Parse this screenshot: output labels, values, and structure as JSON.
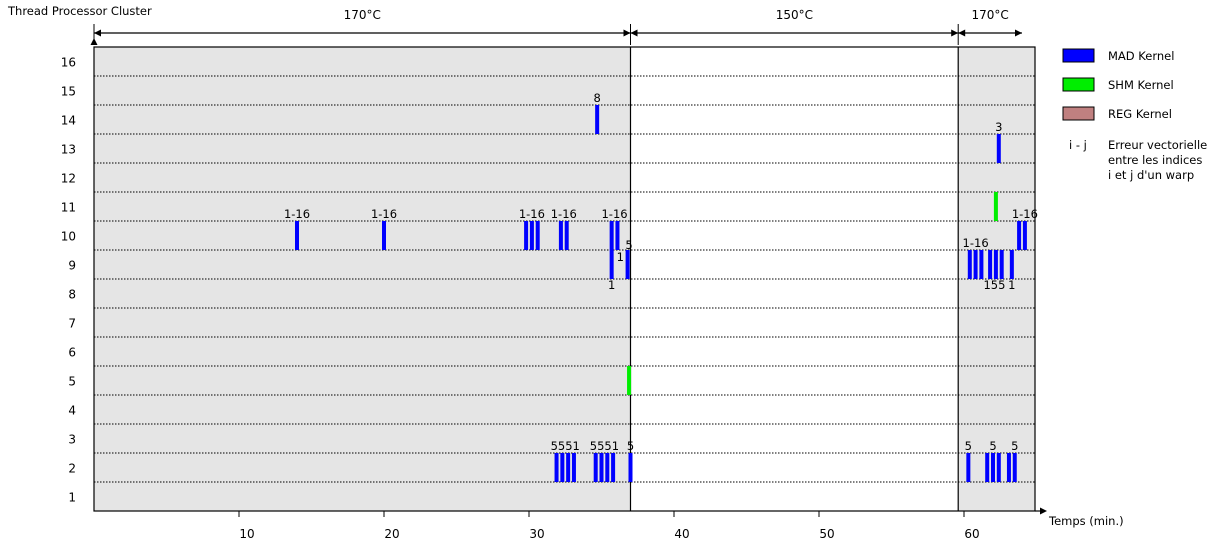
{
  "chart_data": {
    "type": "event-timeline",
    "ylabel": "Thread Processor Cluster",
    "xlabel": "Temps (min.)",
    "xlim": [
      0,
      65
    ],
    "ylim": [
      0,
      16
    ],
    "x_ticks": [
      "10",
      "20",
      "30",
      "40",
      "50",
      "60"
    ],
    "x_tick_values": [
      10,
      20,
      30,
      40,
      50,
      60
    ],
    "y_ticks": [
      "1",
      "2",
      "3",
      "4",
      "5",
      "6",
      "7",
      "8",
      "9",
      "10",
      "11",
      "12",
      "13",
      "14",
      "15",
      "16"
    ],
    "y_tick_values": [
      1,
      2,
      3,
      4,
      5,
      6,
      7,
      8,
      9,
      10,
      11,
      12,
      13,
      14,
      15,
      16
    ],
    "phases": [
      {
        "label": "170°C",
        "start": 0,
        "end": 37,
        "shaded": true
      },
      {
        "label": "150°C",
        "start": 37,
        "end": 59.6,
        "shaded": false
      },
      {
        "label": "170°C",
        "start": 59.6,
        "end": 64,
        "shaded": true
      }
    ],
    "shaded_regions": [
      [
        0,
        37
      ],
      [
        59.6,
        65
      ]
    ],
    "legend": {
      "position": "right",
      "items": [
        {
          "label": "MAD Kernel",
          "color": "#0000ff"
        },
        {
          "label": "SHM Kernel",
          "color": "#00ee00"
        },
        {
          "label": "REG Kernel",
          "color": "#c08080"
        }
      ],
      "note_key": "i - j",
      "note_lines": [
        "Erreur vectorielle",
        "entre les indices",
        "i et j d'un warp"
      ]
    },
    "events": [
      {
        "kernel": "MAD",
        "x": 14,
        "cluster": 10
      },
      {
        "kernel": "MAD",
        "x": 20,
        "cluster": 10
      },
      {
        "kernel": "MAD",
        "x": 29.8,
        "cluster": 10
      },
      {
        "kernel": "MAD",
        "x": 30.2,
        "cluster": 10
      },
      {
        "kernel": "MAD",
        "x": 30.6,
        "cluster": 10
      },
      {
        "kernel": "MAD",
        "x": 32.2,
        "cluster": 10
      },
      {
        "kernel": "MAD",
        "x": 32.6,
        "cluster": 10
      },
      {
        "kernel": "MAD",
        "x": 35.7,
        "cluster": 10
      },
      {
        "kernel": "MAD",
        "x": 36.1,
        "cluster": 10
      },
      {
        "kernel": "MAD",
        "x": 34.7,
        "cluster": 14
      },
      {
        "kernel": "MAD",
        "x": 35.7,
        "cluster": 9
      },
      {
        "kernel": "MAD",
        "x": 36.8,
        "cluster": 9
      },
      {
        "kernel": "MAD",
        "x": 31.9,
        "cluster": 2
      },
      {
        "kernel": "MAD",
        "x": 32.3,
        "cluster": 2
      },
      {
        "kernel": "MAD",
        "x": 32.7,
        "cluster": 2
      },
      {
        "kernel": "MAD",
        "x": 33.1,
        "cluster": 2
      },
      {
        "kernel": "MAD",
        "x": 34.6,
        "cluster": 2
      },
      {
        "kernel": "MAD",
        "x": 35.0,
        "cluster": 2
      },
      {
        "kernel": "MAD",
        "x": 35.4,
        "cluster": 2
      },
      {
        "kernel": "MAD",
        "x": 35.8,
        "cluster": 2
      },
      {
        "kernel": "MAD",
        "x": 37.0,
        "cluster": 2
      },
      {
        "kernel": "SHM",
        "x": 36.9,
        "cluster": 5
      },
      {
        "kernel": "MAD",
        "x": 62.4,
        "cluster": 13
      },
      {
        "kernel": "SHM",
        "x": 62.2,
        "cluster": 11
      },
      {
        "kernel": "MAD",
        "x": 63.8,
        "cluster": 10
      },
      {
        "kernel": "MAD",
        "x": 64.2,
        "cluster": 10
      },
      {
        "kernel": "MAD",
        "x": 60.4,
        "cluster": 9
      },
      {
        "kernel": "MAD",
        "x": 60.8,
        "cluster": 9
      },
      {
        "kernel": "MAD",
        "x": 61.2,
        "cluster": 9
      },
      {
        "kernel": "MAD",
        "x": 61.8,
        "cluster": 9
      },
      {
        "kernel": "MAD",
        "x": 62.2,
        "cluster": 9
      },
      {
        "kernel": "MAD",
        "x": 62.6,
        "cluster": 9
      },
      {
        "kernel": "MAD",
        "x": 63.3,
        "cluster": 9
      },
      {
        "kernel": "MAD",
        "x": 60.3,
        "cluster": 2
      },
      {
        "kernel": "MAD",
        "x": 61.6,
        "cluster": 2
      },
      {
        "kernel": "MAD",
        "x": 62.0,
        "cluster": 2
      },
      {
        "kernel": "MAD",
        "x": 62.4,
        "cluster": 2
      },
      {
        "kernel": "MAD",
        "x": 63.1,
        "cluster": 2
      },
      {
        "kernel": "MAD",
        "x": 63.5,
        "cluster": 2
      }
    ],
    "annotations": [
      {
        "text": "8",
        "x": 34.7,
        "cluster": 14,
        "pos": "above"
      },
      {
        "text": "1-16",
        "x": 14,
        "cluster": 10,
        "pos": "above"
      },
      {
        "text": "1-16",
        "x": 20,
        "cluster": 10,
        "pos": "above"
      },
      {
        "text": "1-16",
        "x": 30.2,
        "cluster": 10,
        "pos": "above"
      },
      {
        "text": "1-16",
        "x": 32.4,
        "cluster": 10,
        "pos": "above"
      },
      {
        "text": "1-16",
        "x": 35.9,
        "cluster": 10,
        "pos": "above"
      },
      {
        "text": "1",
        "x": 36.3,
        "cluster": 9,
        "pos": "mid"
      },
      {
        "text": "5",
        "x": 36.9,
        "cluster": 10,
        "pos": "bottom"
      },
      {
        "text": "1",
        "x": 35.7,
        "cluster": 9,
        "pos": "below"
      },
      {
        "text": "5551",
        "x": 32.5,
        "cluster": 2,
        "pos": "above"
      },
      {
        "text": "5551",
        "x": 35.2,
        "cluster": 2,
        "pos": "above"
      },
      {
        "text": "5",
        "x": 37.0,
        "cluster": 2,
        "pos": "above"
      },
      {
        "text": "3",
        "x": 62.4,
        "cluster": 13,
        "pos": "above"
      },
      {
        "text": "1-16",
        "x": 64.2,
        "cluster": 10,
        "pos": "above"
      },
      {
        "text": "1-16",
        "x": 60.8,
        "cluster": 9,
        "pos": "above"
      },
      {
        "text": "155",
        "x": 62.1,
        "cluster": 9,
        "pos": "below"
      },
      {
        "text": "1",
        "x": 63.3,
        "cluster": 9,
        "pos": "below"
      },
      {
        "text": "5",
        "x": 60.3,
        "cluster": 2,
        "pos": "above"
      },
      {
        "text": "5",
        "x": 62.0,
        "cluster": 2,
        "pos": "above"
      },
      {
        "text": "5",
        "x": 63.5,
        "cluster": 2,
        "pos": "above"
      }
    ]
  }
}
